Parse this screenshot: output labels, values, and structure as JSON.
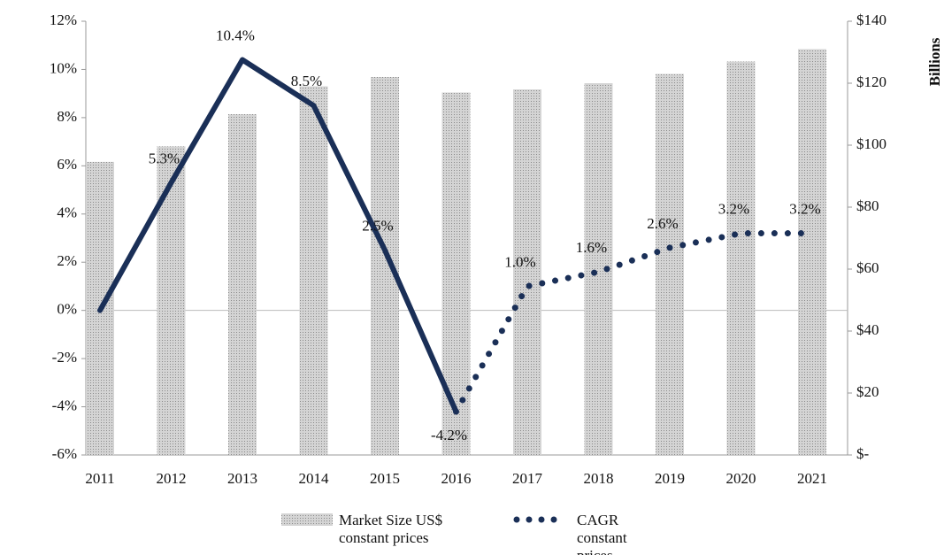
{
  "chart_data": {
    "type": "bar_line",
    "y2_title": "Billions",
    "categories": [
      "2011",
      "2012",
      "2013",
      "2014",
      "2015",
      "2016",
      "2017",
      "2018",
      "2019",
      "2020",
      "2021"
    ],
    "series": [
      {
        "name": "Market Size US$ constant prices",
        "type": "bar",
        "axis": "y2",
        "color": "#c4c4c4",
        "values": [
          94.6,
          99.6,
          110,
          119,
          122,
          117,
          118,
          120,
          123,
          127,
          131
        ]
      },
      {
        "type": "line",
        "style": "solid",
        "color": "#1a2f57",
        "values": [
          0,
          5.3,
          10.4,
          8.5,
          2.5,
          -4.2,
          null,
          null,
          null,
          null,
          null
        ],
        "value_labels": [
          null,
          "5.3%",
          "10.4%",
          "8.5%",
          "2.5%",
          "-4.2%",
          null,
          null,
          null,
          null,
          null
        ]
      },
      {
        "name": "CAGR constant prices",
        "type": "line",
        "style": "dotted",
        "color": "#1a2f57",
        "values": [
          null,
          null,
          null,
          null,
          null,
          -4.2,
          1.0,
          1.6,
          2.6,
          3.2,
          3.2
        ],
        "value_labels": [
          null,
          null,
          null,
          null,
          null,
          null,
          "1.0%",
          "1.6%",
          "2.6%",
          "3.2%",
          "3.2%"
        ]
      }
    ],
    "ylim": [
      -6,
      12
    ],
    "yticks": [
      {
        "value": -6,
        "label": "-6%"
      },
      {
        "value": -4,
        "label": "-4%"
      },
      {
        "value": -2,
        "label": "-2%"
      },
      {
        "value": 0,
        "label": "0%"
      },
      {
        "value": 2,
        "label": "2%"
      },
      {
        "value": 4,
        "label": "4%"
      },
      {
        "value": 6,
        "label": "6%"
      },
      {
        "value": 8,
        "label": "8%"
      },
      {
        "value": 10,
        "label": "10%"
      },
      {
        "value": 12,
        "label": "12%"
      }
    ],
    "y2lim": [
      0,
      140
    ],
    "y2ticks": [
      {
        "value": 0,
        "label": "$-"
      },
      {
        "value": 20,
        "label": "$20"
      },
      {
        "value": 40,
        "label": "$40"
      },
      {
        "value": 60,
        "label": "$60"
      },
      {
        "value": 80,
        "label": "$80"
      },
      {
        "value": 100,
        "label": "$100"
      },
      {
        "value": 120,
        "label": "$120"
      },
      {
        "value": 140,
        "label": "$140"
      }
    ]
  }
}
